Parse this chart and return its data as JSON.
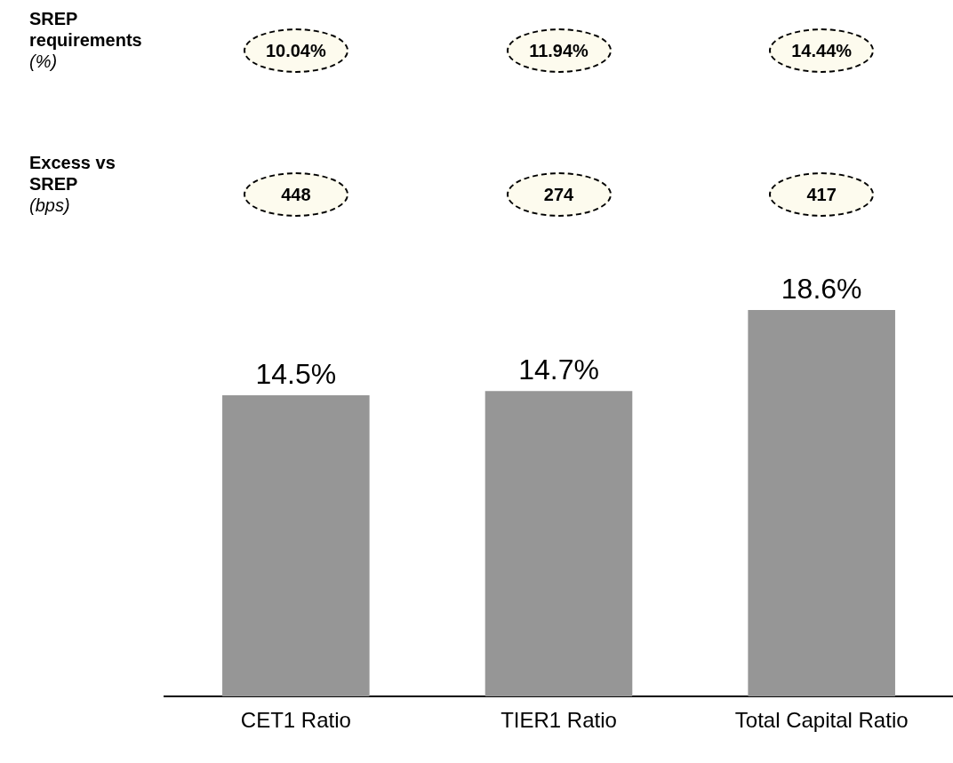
{
  "chart_data": {
    "type": "bar",
    "categories": [
      "CET1 Ratio",
      "TIER1 Ratio",
      "Total Capital Ratio"
    ],
    "values": [
      14.5,
      14.7,
      18.6
    ],
    "value_labels": [
      "14.5%",
      "14.7%",
      "18.6%"
    ],
    "color": "#969696",
    "grid": false,
    "legend": false,
    "tick_labels": "x",
    "annotations": [
      "SREP requirements",
      "(%)",
      "10.04%",
      "11.94%",
      "14.44%",
      "Excess vs SREP",
      "(bps)",
      "448",
      "274",
      "417"
    ]
  }
}
